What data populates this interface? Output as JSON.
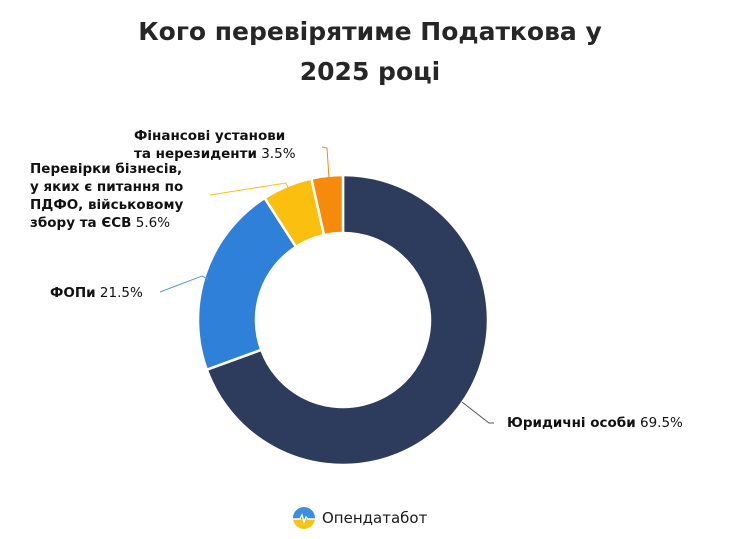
{
  "title_line1": "Кого перевірятиме Податкова у",
  "title_line2": "2025 році",
  "labels": {
    "finance_name_1": "Фінансові установи",
    "finance_name_2": "та нерезиденти",
    "finance_value": "3.5%",
    "business_name_1": "Перевірки бізнесів,",
    "business_name_2": "у яких є питання по",
    "business_name_3": "ПДФО, військовому",
    "business_name_4": "збору та ЄСВ",
    "business_value": "5.6%",
    "fop_name": "ФОПи",
    "fop_value": "21.5%",
    "legal_name": "Юридичні особи",
    "legal_value": "69.5%"
  },
  "footer": {
    "brand": "Опендатабот"
  },
  "chart_data": {
    "type": "pie",
    "subtype": "donut",
    "title": "Кого перевірятиме Податкова у 2025 році",
    "categories": [
      "Юридичні особи",
      "ФОПи",
      "Перевірки бізнесів, у яких є питання по ПДФО, військовому збору та ЄСВ",
      "Фінансові установи та нерезиденти"
    ],
    "values": [
      69.5,
      21.5,
      5.6,
      3.5
    ],
    "unit": "%",
    "colors": [
      "#2d3b5c",
      "#2f80d8",
      "#fbbf0f",
      "#f58a0b"
    ],
    "start_angle_deg": 0,
    "direction": "clockwise"
  }
}
